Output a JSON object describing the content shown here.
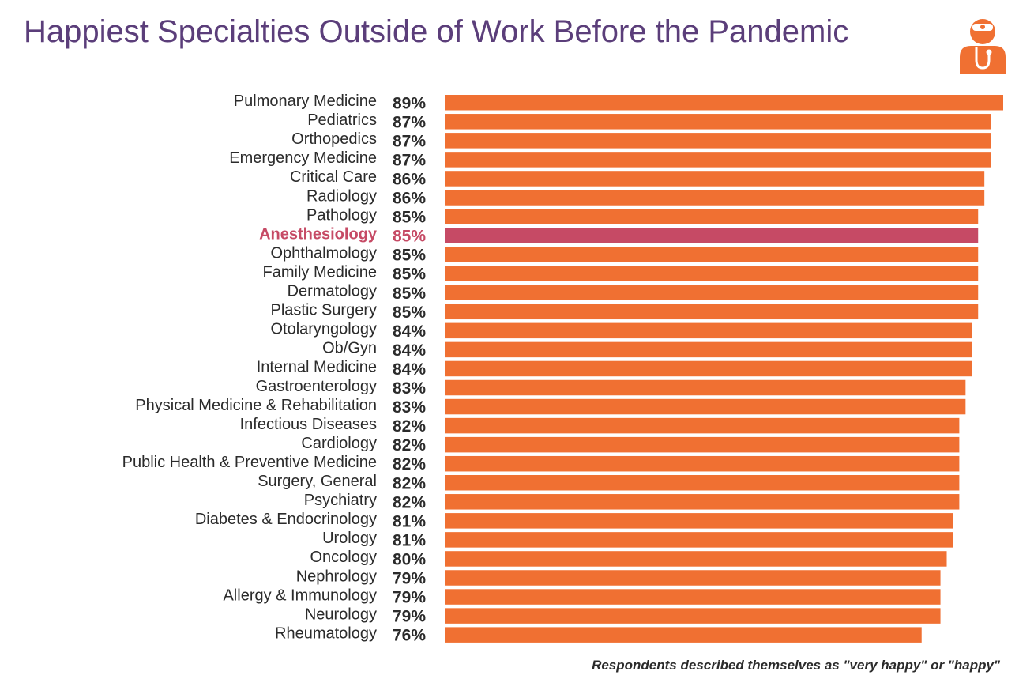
{
  "chart_data": {
    "type": "bar",
    "orientation": "horizontal",
    "title": "Happiest Specialties Outside of Work Before the Pandemic",
    "footnote": "Respondents described themselves as \"very happy\" or \"happy\"",
    "highlight": "Anesthesiology",
    "colors": {
      "bar": "#f07032",
      "highlight": "#c64a65",
      "title": "#5b3e7a",
      "label": "#2b2b2b"
    },
    "logo_icon": "doctor-stethoscope-icon",
    "xlim": [
      0,
      89
    ],
    "unit": "%",
    "categories": [
      "Pulmonary Medicine",
      "Pediatrics",
      "Orthopedics",
      "Emergency Medicine",
      "Critical Care",
      "Radiology",
      "Pathology",
      "Anesthesiology",
      "Ophthalmology",
      "Family Medicine",
      "Dermatology",
      "Plastic Surgery",
      "Otolaryngology",
      "Ob/Gyn",
      "Internal Medicine",
      "Gastroenterology",
      "Physical Medicine & Rehabilitation",
      "Infectious Diseases",
      "Cardiology",
      "Public Health & Preventive Medicine",
      "Surgery, General",
      "Psychiatry",
      "Diabetes & Endocrinology",
      "Urology",
      "Oncology",
      "Nephrology",
      "Allergy & Immunology",
      "Neurology",
      "Rheumatology"
    ],
    "values": [
      89,
      87,
      87,
      87,
      86,
      86,
      85,
      85,
      85,
      85,
      85,
      85,
      84,
      84,
      84,
      83,
      83,
      82,
      82,
      82,
      82,
      82,
      81,
      81,
      80,
      79,
      79,
      79,
      76
    ],
    "labels": [
      "89%",
      "87%",
      "87%",
      "87%",
      "86%",
      "86%",
      "85%",
      "85%",
      "85%",
      "85%",
      "85%",
      "85%",
      "84%",
      "84%",
      "84%",
      "83%",
      "83%",
      "82%",
      "82%",
      "82%",
      "82%",
      "82%",
      "81%",
      "81%",
      "80%",
      "79%",
      "79%",
      "79%",
      "76%"
    ]
  }
}
